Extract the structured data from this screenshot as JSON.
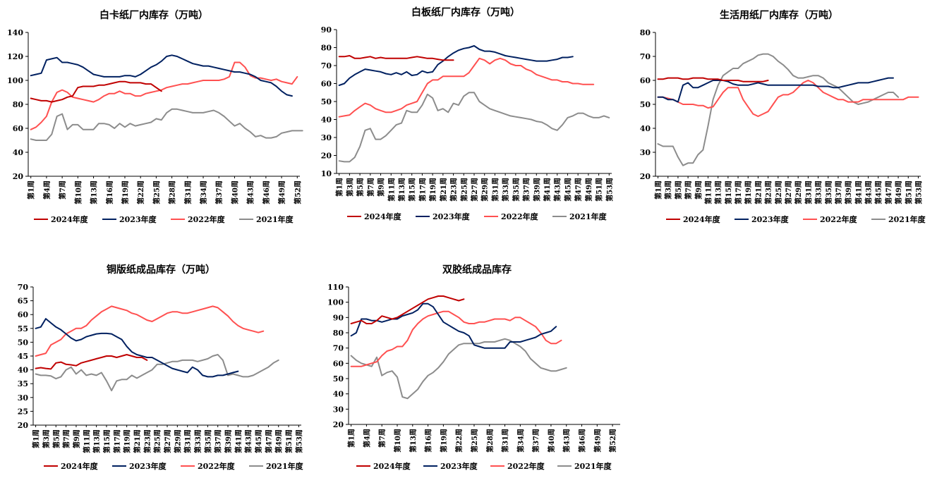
{
  "colors": {
    "2024": "#c00000",
    "2023": "#002060",
    "2022": "#ff5050",
    "2021": "#8c8c8c"
  },
  "chart_data": [
    {
      "type": "line",
      "title": "白卡纸厂内库存（万吨）",
      "ylim": [
        20,
        140
      ],
      "yticks": [
        20,
        40,
        60,
        80,
        100,
        120,
        140
      ],
      "x_count": 52,
      "xtick_labels": [
        "第1周",
        "第4周",
        "第7周",
        "第10周",
        "第13周",
        "第16周",
        "第19周",
        "第22周",
        "第25周",
        "第28周",
        "第31周",
        "第34周",
        "第37周",
        "第40周",
        "第43周",
        "第46周",
        "第49周",
        "第52周"
      ],
      "series": [
        {
          "name": "2024年度",
          "key": "2024",
          "values": [
            85,
            84,
            83,
            83,
            82,
            83,
            84,
            86,
            87,
            94,
            95,
            95,
            95,
            96,
            96,
            97,
            98,
            99,
            99,
            98,
            98,
            98,
            97,
            97,
            94,
            91
          ]
        },
        {
          "name": "2023年度",
          "key": "2023",
          "values": [
            104,
            105,
            106,
            117,
            118,
            119,
            115,
            115,
            114,
            113,
            111,
            108,
            105,
            104,
            103,
            103,
            103,
            103,
            104,
            104,
            103,
            105,
            108,
            111,
            113,
            116,
            120,
            121,
            120,
            118,
            116,
            114,
            113,
            112,
            112,
            111,
            110,
            109,
            108,
            107,
            107,
            106,
            105,
            103,
            100,
            99,
            98,
            95,
            91,
            88,
            87
          ]
        },
        {
          "name": "2022年度",
          "key": "2022",
          "values": [
            59,
            61,
            65,
            70,
            82,
            90,
            92,
            90,
            86,
            85,
            84,
            83,
            82,
            84,
            87,
            89,
            89,
            91,
            89,
            89,
            87,
            87,
            89,
            90,
            91,
            92,
            94,
            95,
            96,
            97,
            97,
            98,
            99,
            100,
            100,
            100,
            100,
            101,
            103,
            115,
            115,
            111,
            104,
            102,
            102,
            101,
            100,
            101,
            99,
            98,
            97,
            103
          ]
        },
        {
          "name": "2021年度",
          "key": "2021",
          "values": [
            51,
            50,
            50,
            50,
            55,
            70,
            72,
            59,
            63,
            63,
            59,
            59,
            59,
            64,
            64,
            63,
            60,
            64,
            61,
            64,
            62,
            63,
            64,
            65,
            68,
            67,
            73,
            76,
            76,
            75,
            74,
            73,
            73,
            73,
            74,
            75,
            73,
            70,
            66,
            62,
            64,
            60,
            57,
            53,
            54,
            52,
            52,
            53,
            56,
            57,
            58,
            58,
            58
          ]
        }
      ]
    },
    {
      "type": "line",
      "title": "白板纸厂内库存（万吨）",
      "ylim": [
        10,
        90
      ],
      "yticks": [
        10,
        20,
        30,
        40,
        50,
        60,
        70,
        80,
        90
      ],
      "x_count": 53,
      "xtick_labels": [
        "第1周",
        "第3周",
        "第5周",
        "第7周",
        "第9周",
        "第11周",
        "第13周",
        "第15周",
        "第17周",
        "第19周",
        "第21周",
        "第23周",
        "第25周",
        "第27周",
        "第29周",
        "第31周",
        "第33周",
        "第35周",
        "第37周",
        "第39周",
        "第41周",
        "第43周",
        "第45周",
        "第47周",
        "第49周",
        "第51周",
        "第53周"
      ],
      "series": [
        {
          "name": "2024年度",
          "key": "2024",
          "values": [
            75,
            75,
            75.5,
            74,
            74,
            74.5,
            75,
            74,
            74.5,
            74,
            74,
            74,
            74,
            74,
            74.5,
            75,
            74.5,
            74,
            74,
            73.5,
            73,
            73,
            73
          ]
        },
        {
          "name": "2023年度",
          "key": "2023",
          "values": [
            59,
            60,
            63,
            65,
            66.5,
            68,
            67.5,
            67,
            66.5,
            65.5,
            65,
            66,
            65,
            66.5,
            64.5,
            65,
            67,
            66,
            66.5,
            70.5,
            72.5,
            75,
            77,
            78.5,
            79.5,
            80,
            81,
            79,
            78,
            78,
            77.5,
            76.5,
            75.5,
            75,
            74.5,
            74,
            73.5,
            73,
            72.5,
            72.5,
            72.5,
            73,
            73.5,
            74.5,
            74.5,
            75
          ]
        },
        {
          "name": "2022年度",
          "key": "2022",
          "values": [
            41.5,
            42,
            42.5,
            45,
            47,
            49,
            48,
            46,
            45,
            44,
            44,
            45,
            46,
            48,
            49,
            50,
            55,
            60,
            62,
            62,
            64,
            64,
            64,
            64,
            64,
            66,
            70,
            74,
            73,
            71,
            73,
            74,
            73,
            71,
            70,
            70,
            68,
            67,
            65,
            64,
            63,
            62,
            62,
            61,
            61,
            60,
            60,
            59.5,
            59.5,
            59.5
          ]
        },
        {
          "name": "2021年度",
          "key": "2021",
          "values": [
            17,
            16.5,
            16.5,
            19,
            25,
            34,
            35,
            29,
            29,
            31,
            34,
            37,
            38,
            45,
            44,
            44,
            48,
            54,
            52,
            45,
            46,
            44,
            49,
            48,
            53,
            55,
            55,
            50,
            48,
            46,
            45,
            44,
            43,
            42,
            41.5,
            41,
            40.5,
            40,
            39,
            38.5,
            37,
            35,
            34,
            37,
            41,
            42,
            43.5,
            43.5,
            42,
            41,
            41,
            42,
            41
          ]
        }
      ]
    },
    {
      "type": "line",
      "title": "生活用纸厂内库存（万吨）",
      "ylim": [
        20,
        80
      ],
      "yticks": [
        20,
        30,
        40,
        50,
        60,
        70,
        80
      ],
      "x_count": 53,
      "xtick_labels": [
        "第1周",
        "第3周",
        "第5周",
        "第7周",
        "第9周",
        "第11周",
        "第13周",
        "第15周",
        "第17周",
        "第19周",
        "第21周",
        "第23周",
        "第25周",
        "第27周",
        "第29周",
        "第31周",
        "第33周",
        "第35周",
        "第37周",
        "第39周",
        "第41周",
        "第43周",
        "第45周",
        "第47周",
        "第49周",
        "第51周",
        "第53周"
      ],
      "series": [
        {
          "name": "2024年度",
          "key": "2024",
          "values": [
            60.5,
            60.5,
            61,
            61,
            61,
            60.5,
            60.5,
            61,
            61,
            61,
            60.5,
            60.5,
            60.5,
            60,
            60,
            60,
            60,
            59.5,
            59.5,
            59.5,
            59.5,
            59.5,
            60
          ]
        },
        {
          "name": "2023年度",
          "key": "2023",
          "values": [
            53,
            53,
            52,
            52,
            51,
            58,
            59,
            57,
            57,
            58,
            59,
            60,
            60,
            60,
            59.5,
            58.5,
            58,
            58,
            58,
            58.5,
            59,
            58.5,
            58,
            58,
            58,
            58,
            58,
            58,
            58,
            58,
            58,
            58,
            57.5,
            57.5,
            57.5,
            57,
            57,
            57.5,
            58,
            58.5,
            59,
            59,
            59,
            59.5,
            60,
            60.5,
            61,
            61
          ]
        },
        {
          "name": "2022年度",
          "key": "2022",
          "values": [
            53,
            53,
            52.5,
            52,
            51,
            50,
            50,
            50,
            49.5,
            49.5,
            48.5,
            49,
            52,
            55,
            57,
            57,
            57,
            52,
            49,
            46,
            45,
            46,
            47,
            50,
            53,
            54,
            54,
            55,
            57,
            59,
            60,
            59,
            57,
            55,
            54,
            53,
            52,
            52,
            51,
            51,
            51,
            52,
            52,
            52,
            52,
            52,
            52,
            52,
            52,
            52,
            53,
            53,
            53
          ]
        },
        {
          "name": "2021年度",
          "key": "2021",
          "values": [
            33.5,
            32.5,
            32.5,
            32.5,
            28,
            24.5,
            25.5,
            25.5,
            29,
            31,
            41,
            52,
            58,
            62,
            63.5,
            65,
            65,
            67,
            68,
            69,
            70.5,
            71,
            71,
            70,
            68,
            66.5,
            64.5,
            62,
            61,
            61,
            61.5,
            62,
            62,
            61,
            59,
            58,
            57,
            55,
            53,
            51,
            50,
            50.5,
            51,
            52,
            53,
            54,
            55,
            55,
            53
          ]
        }
      ]
    },
    {
      "type": "line",
      "title": "铜版纸成品库存（万吨）",
      "ylim": [
        20,
        70
      ],
      "yticks": [
        20,
        25,
        30,
        35,
        40,
        45,
        50,
        55,
        60,
        65,
        70
      ],
      "x_count": 53,
      "xtick_labels": [
        "第1周",
        "第3周",
        "第5周",
        "第7周",
        "第9周",
        "第11周",
        "第13周",
        "第15周",
        "第17周",
        "第19周",
        "第21周",
        "第23周",
        "第25周",
        "第27周",
        "第29周",
        "第31周",
        "第33周",
        "第35周",
        "第37周",
        "第39周",
        "第41周",
        "第43周",
        "第45周",
        "第47周",
        "第49周",
        "第51周",
        "第53周"
      ],
      "series": [
        {
          "name": "2024年度",
          "key": "2024",
          "values": [
            40.5,
            40.8,
            40.5,
            40.3,
            42.5,
            42.8,
            42,
            41.8,
            41.5,
            42.5,
            43,
            43.5,
            44,
            44.5,
            45,
            45,
            44.5,
            45,
            45.5,
            45,
            44.5,
            44.5,
            43.5
          ]
        },
        {
          "name": "2023年度",
          "key": "2023",
          "values": [
            55,
            55.5,
            58.5,
            57,
            55.5,
            54.5,
            53,
            51.5,
            50.5,
            51,
            52,
            52.5,
            53,
            53.2,
            53.2,
            53,
            52,
            51,
            48.5,
            46.5,
            45.5,
            45,
            44.5,
            44.5,
            43.5,
            42.5,
            41.5,
            40.5,
            40,
            39.5,
            39,
            41,
            40,
            38,
            37.5,
            37.5,
            38,
            38,
            38.5,
            39,
            39.5
          ]
        },
        {
          "name": "2022年度",
          "key": "2022",
          "values": [
            45,
            45.5,
            46,
            49,
            50,
            51,
            53,
            54,
            55,
            55,
            56,
            58,
            59.5,
            61,
            62,
            63,
            62.5,
            62,
            61.5,
            60.5,
            60,
            59,
            58,
            57.5,
            58.5,
            59.5,
            60.5,
            61,
            61,
            60.5,
            60.5,
            61,
            61.5,
            62,
            62.5,
            63,
            62.5,
            61,
            59.5,
            57.5,
            56,
            55,
            54.5,
            54,
            53.5,
            54
          ]
        },
        {
          "name": "2021年度",
          "key": "2021",
          "values": [
            38.5,
            38,
            38,
            37.8,
            36.8,
            37.5,
            40,
            41,
            38.5,
            40,
            38,
            38.5,
            38,
            39,
            36,
            32.5,
            36,
            36.5,
            36.5,
            38,
            37,
            38,
            39,
            40,
            42,
            42,
            42.5,
            43,
            43,
            43.5,
            43.5,
            43.5,
            43,
            43.5,
            44,
            45,
            45.5,
            43.5,
            38,
            38.5,
            38,
            37.5,
            37.5,
            38,
            39,
            40,
            41,
            42.5,
            43.5
          ]
        }
      ]
    },
    {
      "type": "line",
      "title": "双胶纸成品库存",
      "ylim": [
        20,
        110
      ],
      "yticks": [
        20,
        30,
        40,
        50,
        60,
        70,
        80,
        90,
        100,
        110
      ],
      "x_count": 53,
      "xtick_labels": [
        "第1周",
        "第4周",
        "第7周",
        "第10周",
        "第13周",
        "第16周",
        "第19周",
        "第22周",
        "第25周",
        "第28周",
        "第31周",
        "第34周",
        "第37周",
        "第40周",
        "第43周",
        "第46周",
        "第49周",
        "第52周"
      ],
      "series": [
        {
          "name": "2024年度",
          "key": "2024",
          "values": [
            86,
            87,
            88,
            86,
            86,
            88,
            91,
            90,
            89,
            90,
            92,
            94,
            96,
            98,
            100,
            102,
            103,
            104,
            104,
            103,
            102,
            101,
            102
          ]
        },
        {
          "name": "2023年度",
          "key": "2023",
          "values": [
            78,
            80,
            89,
            89,
            88,
            88,
            87,
            88,
            89,
            89,
            91,
            92,
            93,
            95,
            99,
            99,
            97,
            92,
            87,
            85,
            83,
            81,
            80,
            78,
            72,
            71,
            70,
            70,
            70,
            70,
            70,
            74,
            74,
            74,
            75,
            76,
            77,
            79,
            80,
            81,
            84
          ]
        },
        {
          "name": "2022年度",
          "key": "2022",
          "values": [
            58,
            58,
            58,
            59,
            60,
            61,
            65,
            68,
            69,
            71,
            71,
            75,
            82,
            86,
            89,
            91,
            92,
            93,
            94,
            94,
            92,
            90,
            87,
            86,
            86,
            87,
            87,
            88,
            89,
            89,
            89,
            88,
            90,
            90,
            88,
            86,
            84,
            80,
            75,
            73,
            73,
            75
          ]
        },
        {
          "name": "2021年度",
          "key": "2021",
          "values": [
            65,
            62,
            60,
            59,
            58,
            64,
            52,
            54,
            55,
            51,
            38,
            37,
            40,
            43,
            48,
            52,
            54,
            57,
            61,
            66,
            69,
            72,
            73,
            73,
            73,
            73,
            74,
            74,
            74,
            75,
            76,
            75,
            73,
            71,
            68,
            63,
            60,
            57,
            56,
            55,
            55,
            56,
            57
          ]
        }
      ]
    }
  ],
  "legend": [
    "2024年度",
    "2023年度",
    "2022年度",
    "2021年度"
  ]
}
